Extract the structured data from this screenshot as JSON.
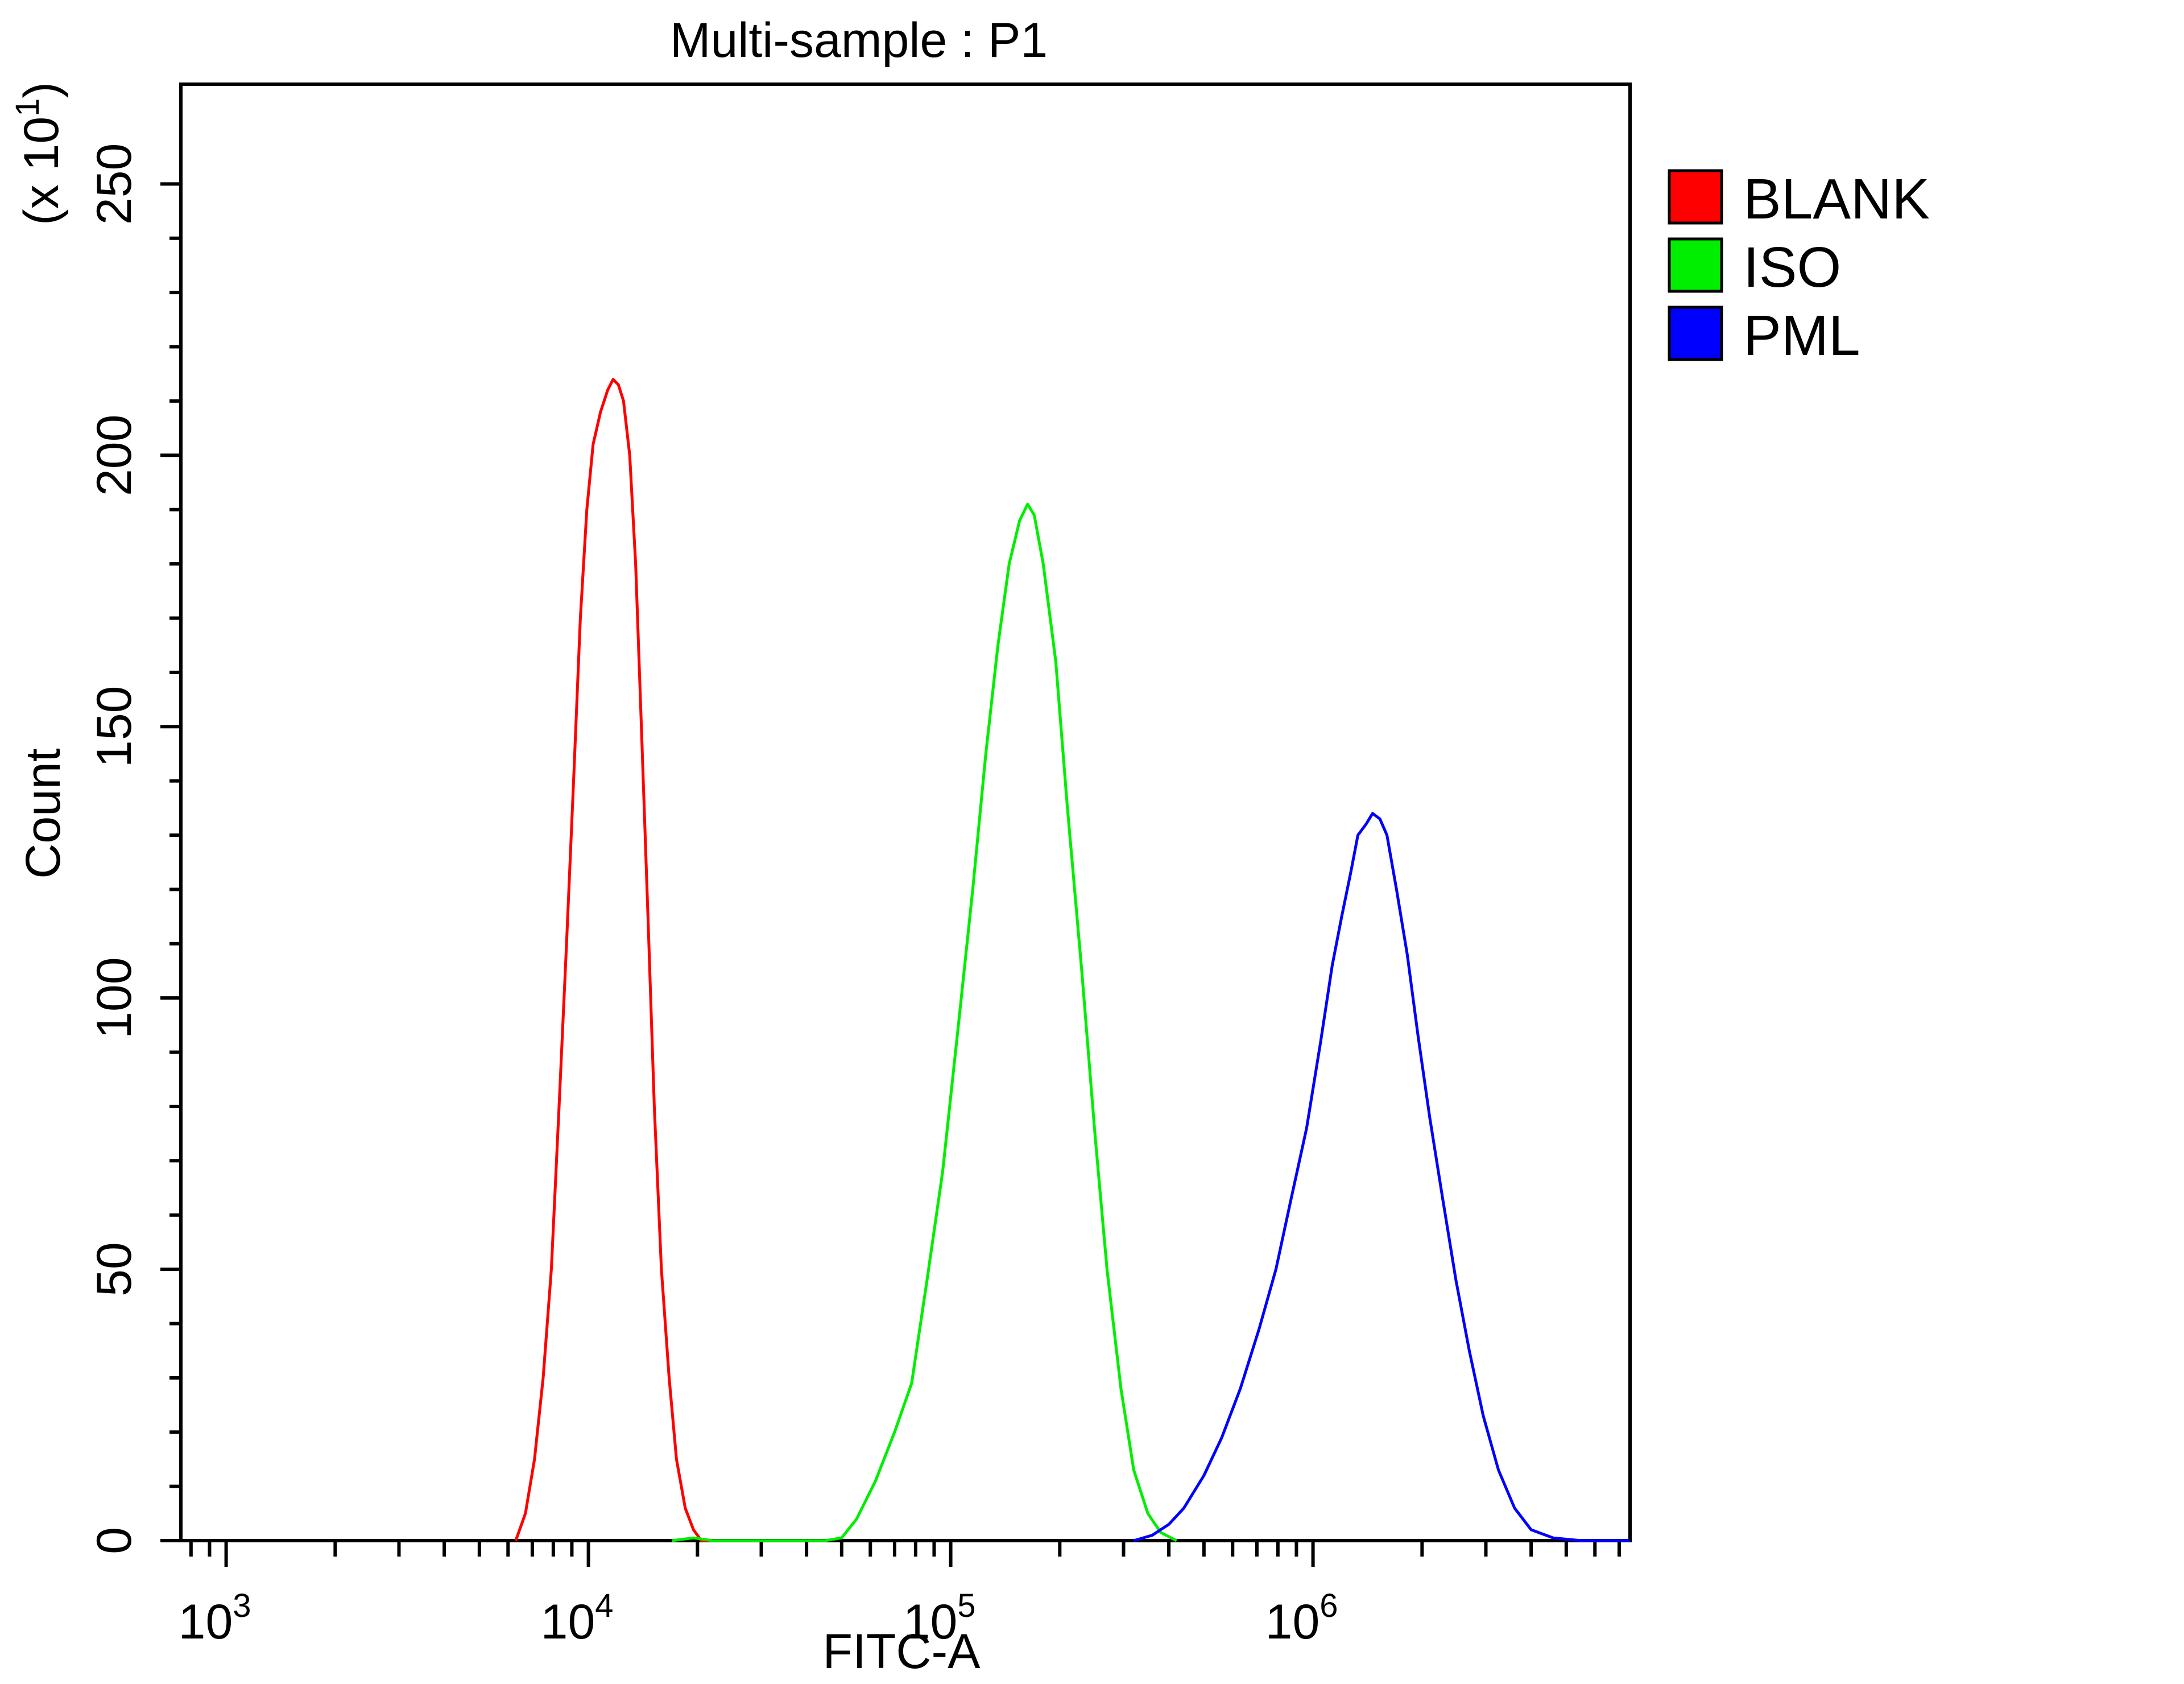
{
  "chart_data": {
    "type": "line",
    "title": "Multi-sample : P1",
    "xlabel": "FITC-A",
    "ylabel": "Count",
    "y_multiplier_label": "(x 10",
    "y_multiplier_exponent": "1",
    "y_multiplier_close": ")",
    "x_scale": "log",
    "xlim": [
      750,
      7500000
    ],
    "ylim": [
      0,
      2600
    ],
    "x_ticks": [
      {
        "base": "10",
        "exp": "3",
        "value": 1000
      },
      {
        "base": "10",
        "exp": "4",
        "value": 10000
      },
      {
        "base": "10",
        "exp": "5",
        "value": 100000
      },
      {
        "base": "10",
        "exp": "6",
        "value": 1000000
      }
    ],
    "y_ticks": [
      {
        "label": "0",
        "value": 0
      },
      {
        "label": "50",
        "value": 500
      },
      {
        "label": "100",
        "value": 1000
      },
      {
        "label": "150",
        "value": 1500
      },
      {
        "label": "200",
        "value": 2000
      },
      {
        "label": "250",
        "value": 2500
      }
    ],
    "legend_position": "right",
    "grid": false,
    "series": [
      {
        "name": "BLANK",
        "color": "#ff0000",
        "points": [
          [
            6300,
            0
          ],
          [
            6700,
            50
          ],
          [
            7100,
            150
          ],
          [
            7500,
            300
          ],
          [
            7900,
            500
          ],
          [
            8300,
            800
          ],
          [
            8700,
            1100
          ],
          [
            9100,
            1400
          ],
          [
            9500,
            1700
          ],
          [
            9900,
            1900
          ],
          [
            10300,
            2020
          ],
          [
            10800,
            2080
          ],
          [
            11300,
            2120
          ],
          [
            11700,
            2140
          ],
          [
            12100,
            2130
          ],
          [
            12500,
            2100
          ],
          [
            13000,
            2000
          ],
          [
            13500,
            1800
          ],
          [
            14000,
            1500
          ],
          [
            14600,
            1150
          ],
          [
            15200,
            800
          ],
          [
            15900,
            500
          ],
          [
            16700,
            300
          ],
          [
            17500,
            150
          ],
          [
            18500,
            60
          ],
          [
            19500,
            20
          ],
          [
            20500,
            0
          ],
          [
            26000,
            0
          ]
        ]
      },
      {
        "name": "ISO",
        "color": "#00ee00",
        "points": [
          [
            17000,
            0
          ],
          [
            19500,
            5
          ],
          [
            22000,
            0
          ],
          [
            45000,
            0
          ],
          [
            50000,
            5
          ],
          [
            55000,
            40
          ],
          [
            62000,
            110
          ],
          [
            70000,
            200
          ],
          [
            78000,
            290
          ],
          [
            86000,
            480
          ],
          [
            95000,
            680
          ],
          [
            105000,
            950
          ],
          [
            115000,
            1200
          ],
          [
            125000,
            1450
          ],
          [
            135000,
            1650
          ],
          [
            145000,
            1800
          ],
          [
            155000,
            1880
          ],
          [
            163000,
            1910
          ],
          [
            170000,
            1890
          ],
          [
            180000,
            1800
          ],
          [
            195000,
            1620
          ],
          [
            210000,
            1350
          ],
          [
            230000,
            1050
          ],
          [
            250000,
            750
          ],
          [
            270000,
            500
          ],
          [
            295000,
            280
          ],
          [
            320000,
            130
          ],
          [
            350000,
            50
          ],
          [
            380000,
            15
          ],
          [
            420000,
            0
          ]
        ]
      },
      {
        "name": "PML",
        "color": "#0000ff",
        "points": [
          [
            320000,
            0
          ],
          [
            360000,
            10
          ],
          [
            400000,
            30
          ],
          [
            440000,
            60
          ],
          [
            500000,
            120
          ],
          [
            560000,
            190
          ],
          [
            630000,
            280
          ],
          [
            710000,
            390
          ],
          [
            790000,
            500
          ],
          [
            870000,
            630
          ],
          [
            960000,
            760
          ],
          [
            1050000,
            920
          ],
          [
            1130000,
            1060
          ],
          [
            1200000,
            1150
          ],
          [
            1270000,
            1230
          ],
          [
            1330000,
            1300
          ],
          [
            1400000,
            1320
          ],
          [
            1460000,
            1340
          ],
          [
            1530000,
            1330
          ],
          [
            1600000,
            1300
          ],
          [
            1700000,
            1200
          ],
          [
            1820000,
            1080
          ],
          [
            1950000,
            930
          ],
          [
            2100000,
            780
          ],
          [
            2280000,
            630
          ],
          [
            2480000,
            480
          ],
          [
            2700000,
            350
          ],
          [
            2950000,
            230
          ],
          [
            3250000,
            130
          ],
          [
            3600000,
            60
          ],
          [
            4000000,
            20
          ],
          [
            4600000,
            5
          ],
          [
            5500000,
            0
          ],
          [
            7500000,
            0
          ]
        ]
      }
    ]
  }
}
